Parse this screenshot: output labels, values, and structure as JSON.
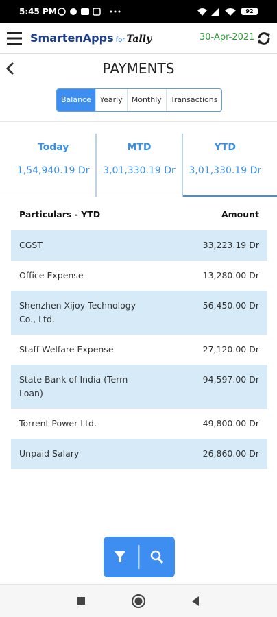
{
  "status_bar": {
    "time": "5:45 PM",
    "battery": "92"
  },
  "app_bar": {
    "brand": "SmartenApps",
    "brand_suffix": "for",
    "brand_logo": "Tally",
    "date": "30-Apr-2021"
  },
  "page": {
    "title": "PAYMENTS"
  },
  "tabs": {
    "items": [
      "Balance",
      "Yearly",
      "Monthly",
      "Transactions"
    ],
    "active": 0
  },
  "summary": {
    "items": [
      {
        "label": "Today",
        "value": "1,54,940.19 Dr"
      },
      {
        "label": "MTD",
        "value": "3,01,330.19 Dr"
      },
      {
        "label": "YTD",
        "value": "3,01,330.19 Dr"
      }
    ],
    "selected": 2
  },
  "table": {
    "header": [
      "Particulars - YTD",
      "Amount"
    ],
    "rows": [
      [
        "CGST",
        "33,223.19 Dr"
      ],
      [
        "Office Expense",
        "13,280.00 Dr"
      ],
      [
        "Shenzhen Xijoy Technology Co., Ltd.",
        "56,450.00 Dr"
      ],
      [
        "Staff Welfare Expense",
        "27,120.00 Dr"
      ],
      [
        "State Bank of India (Term Loan)",
        "94,597.00 Dr"
      ],
      [
        "Torrent Power Ltd.",
        "49,800.00 Dr"
      ],
      [
        "Unpaid Salary",
        "26,860.00 Dr"
      ]
    ]
  }
}
